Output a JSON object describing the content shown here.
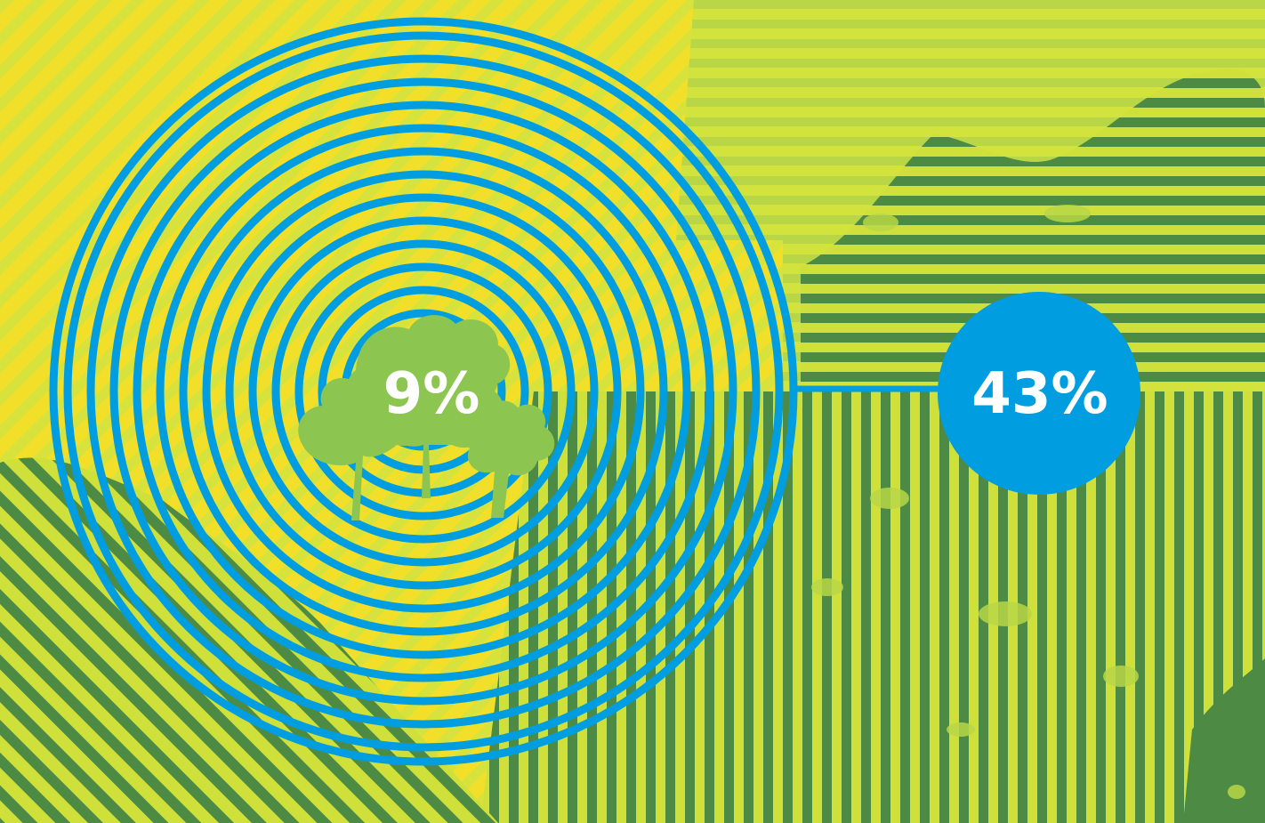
{
  "stats": {
    "inner_percent": "9%",
    "outer_percent": "43%"
  },
  "icons": {
    "trees": "trees-icon"
  },
  "colors": {
    "yellow": "#f0dc27",
    "lime": "#cfe03a",
    "green": "#4d8b45",
    "light_green": "#8cc651",
    "blue": "#009ee0",
    "white": "#ffffff"
  }
}
